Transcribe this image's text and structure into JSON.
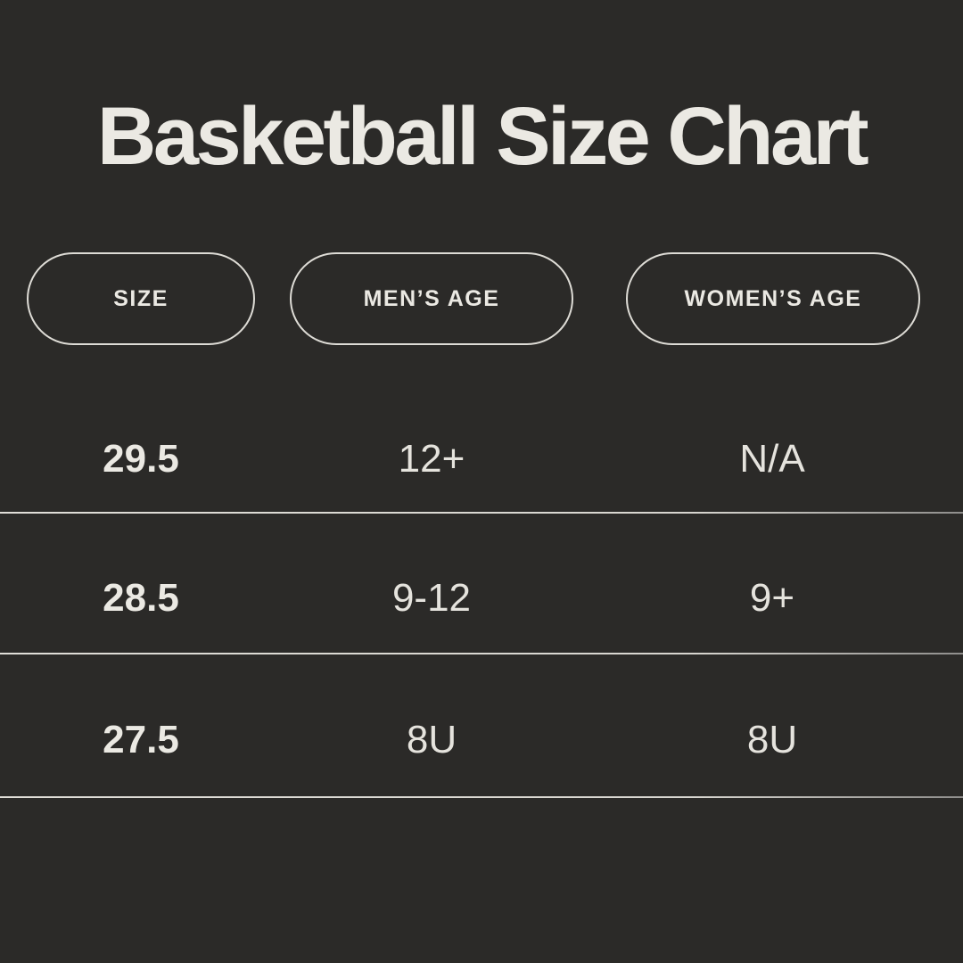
{
  "title": "Basketball Size Chart",
  "colors": {
    "background": "#2b2a28",
    "text": "#ebe9e3",
    "muted_text": "#e5e3dd",
    "pill_border": "#dedcd6",
    "divider": "#d8d6d0"
  },
  "chart_data": {
    "type": "table",
    "title": "Basketball Size Chart",
    "columns": [
      "SIZE",
      "MEN’S AGE",
      "WOMEN’S AGE"
    ],
    "rows": [
      [
        "29.5",
        "12+",
        "N/A"
      ],
      [
        "28.5",
        "9-12",
        "9+"
      ],
      [
        "27.5",
        "8U",
        "8U"
      ]
    ]
  }
}
